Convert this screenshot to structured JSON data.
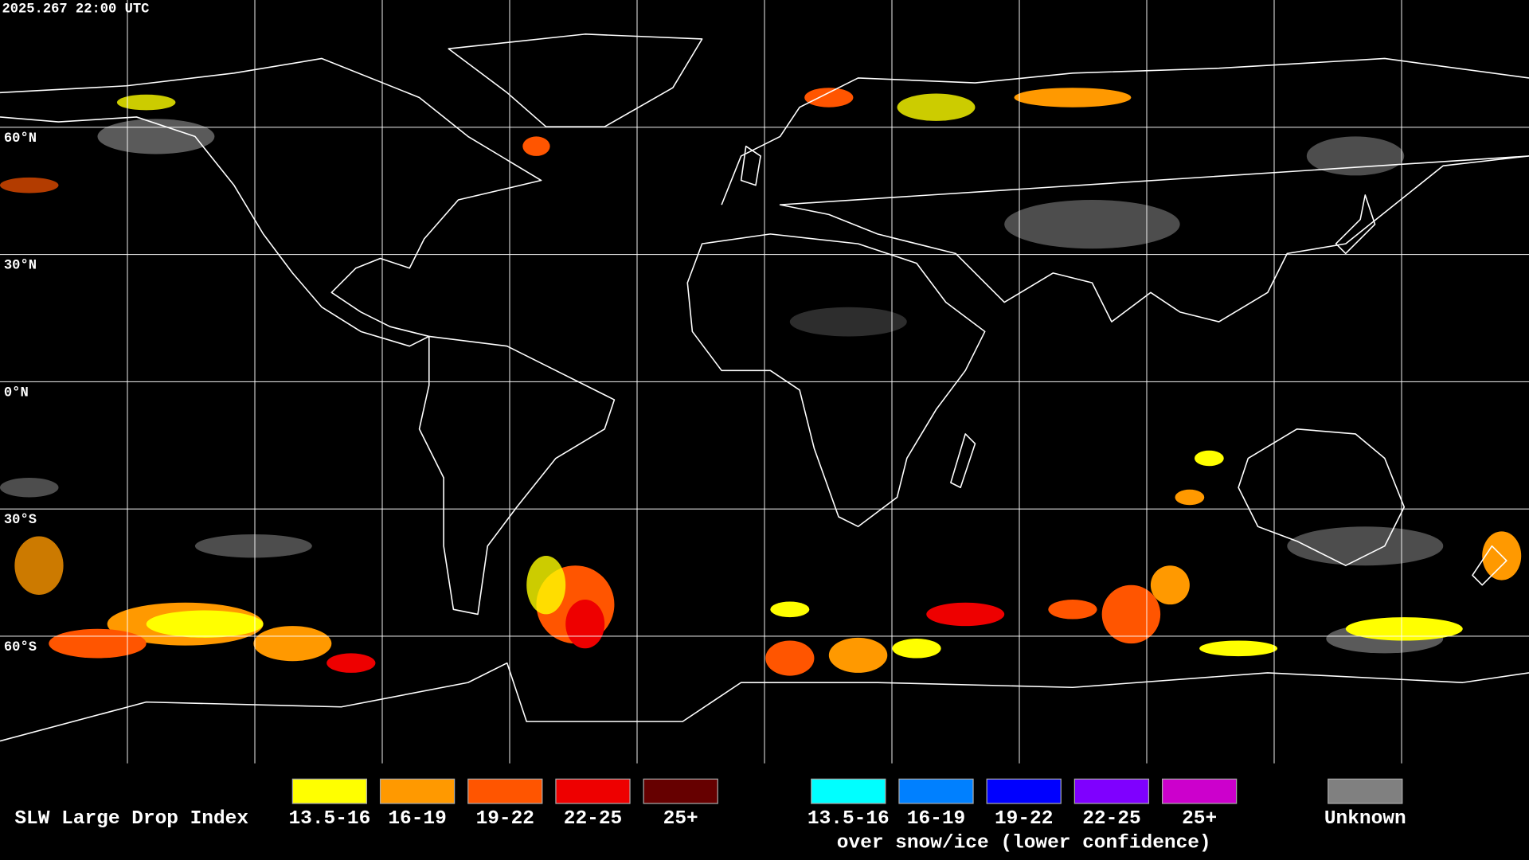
{
  "timestamp": "2025.267 22:00 UTC",
  "lat_labels": [
    "60°N",
    "30°N",
    "0°N",
    "30°S",
    "60°S"
  ],
  "legend": {
    "title": "SLW Large Drop Index",
    "groups": [
      {
        "items": [
          {
            "label": "13.5-16",
            "color": "#ffff00"
          },
          {
            "label": "16-19",
            "color": "#ff9900"
          },
          {
            "label": "19-22",
            "color": "#ff5500"
          },
          {
            "label": "22-25",
            "color": "#ee0000"
          },
          {
            "label": "25+",
            "color": "#660000"
          }
        ]
      },
      {
        "items": [
          {
            "label": "13.5-16",
            "color": "#00ffff"
          },
          {
            "label": "16-19",
            "color": "#0080ff"
          },
          {
            "label": "19-22",
            "color": "#0000ff"
          },
          {
            "label": "22-25",
            "color": "#7f00ff"
          },
          {
            "label": "25+",
            "color": "#cc00cc"
          }
        ],
        "caption": "over snow/ice (lower confidence)"
      }
    ],
    "unknown": {
      "label": "Unknown",
      "color": "#808080"
    }
  }
}
